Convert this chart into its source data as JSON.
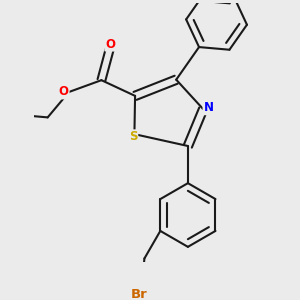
{
  "background_color": "#ebebeb",
  "bond_color": "#1a1a1a",
  "bond_width": 1.5,
  "atom_colors": {
    "O": "#ff0000",
    "N": "#0000ff",
    "S": "#ccaa00",
    "Br": "#cc6600",
    "C": "#1a1a1a"
  },
  "font_size": 8.5,
  "fig_size": [
    3.0,
    3.0
  ],
  "dpi": 100
}
